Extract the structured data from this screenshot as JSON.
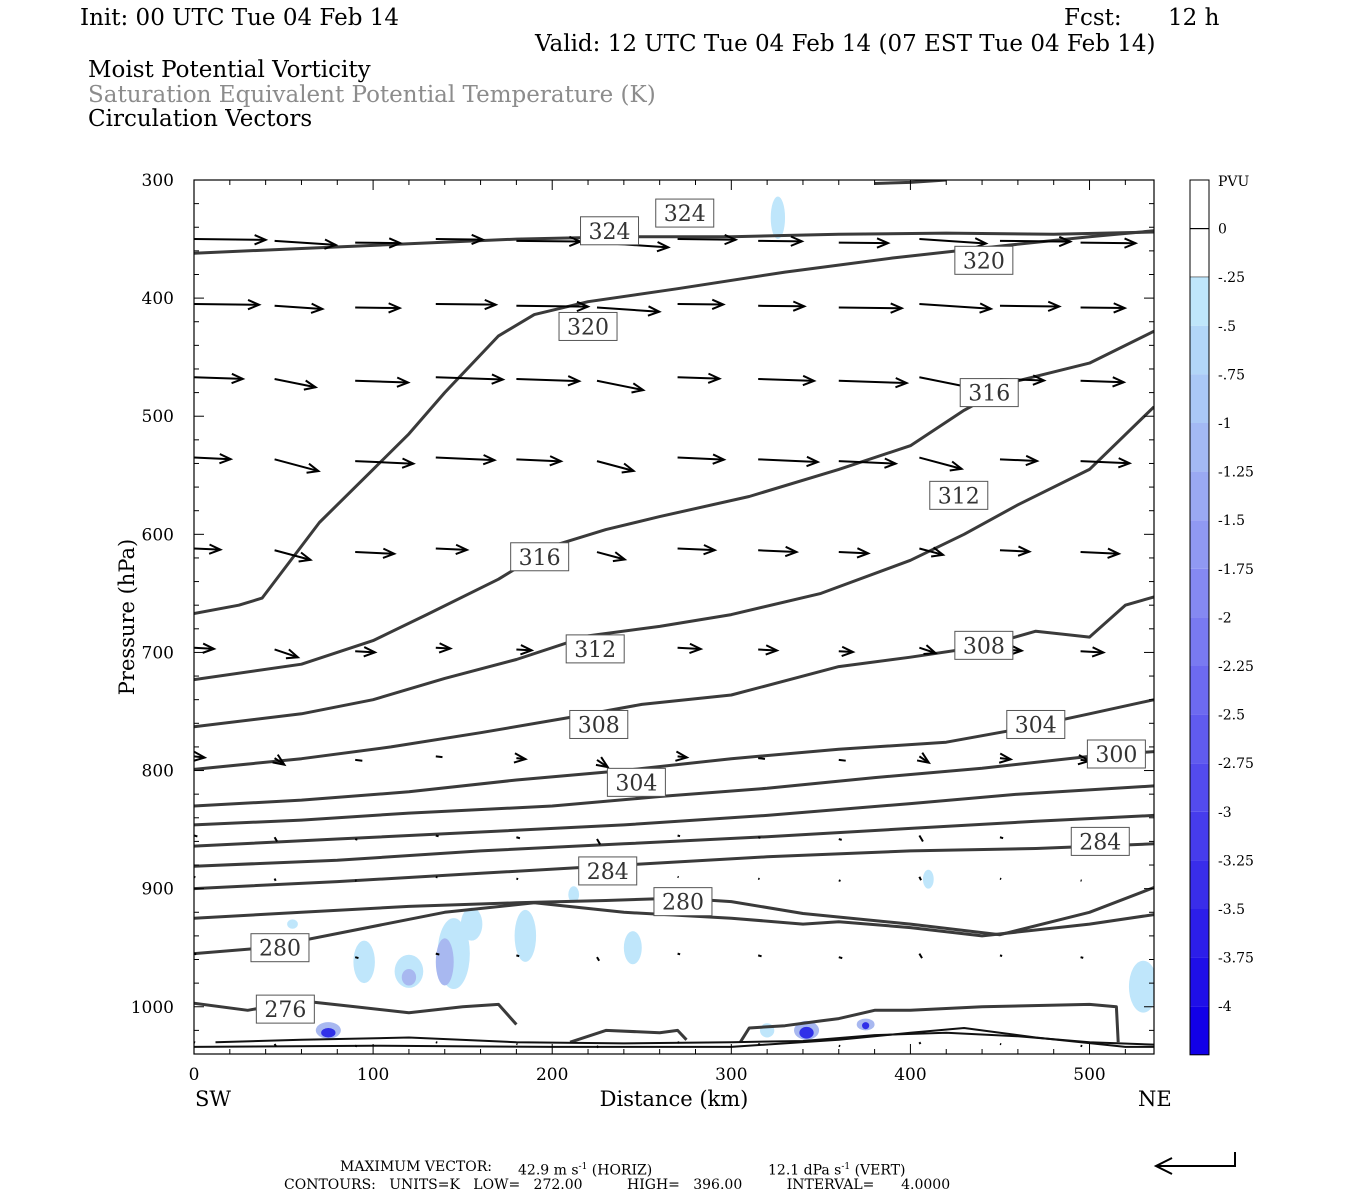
{
  "header": {
    "init": "Init: 00 UTC Tue 04 Feb 14",
    "fcst_label": "Fcst:",
    "fcst_value": "12 h",
    "valid": "Valid: 12 UTC Tue 04 Feb 14 (07 EST Tue 04 Feb 14)"
  },
  "titles": {
    "line1": "Moist Potential Vorticity",
    "line2": "Saturation Equivalent Potential Temperature (K)",
    "line3": "Circulation Vectors"
  },
  "footer": {
    "max_vector_label": "MAXIMUM VECTOR:",
    "horiz": "42.9 m s",
    "horiz_unit": "(HORIZ)",
    "vert": "12.1 dPa s",
    "vert_unit": "(VERT)",
    "contours": "CONTOURS:   UNITS=K   LOW=   272.00          HIGH=   396.00          INTERVAL=      4.0000"
  },
  "colors": {
    "contour": "#3a3a3a",
    "vector": "#000000",
    "mpv_light": "#bfe6fb",
    "mpv_mid": "#a8b8f0",
    "mpv_dark": "#3030e8"
  },
  "chart_data": {
    "type": "contour-cross-section",
    "xlabel": "Distance (km)",
    "ylabel": "Pressure (hPa)",
    "x_ticks": [
      0,
      100,
      200,
      300,
      400,
      500
    ],
    "y_ticks": [
      300,
      400,
      500,
      600,
      700,
      800,
      900,
      1000
    ],
    "xlim": [
      0,
      536
    ],
    "ylim": [
      300,
      1040
    ],
    "y_scale": "linear-inverted",
    "left_end_label": "SW",
    "right_end_label": "NE",
    "contour_labels": [
      {
        "value": "324",
        "x": 232,
        "p": 343
      },
      {
        "value": "324",
        "x": 274,
        "p": 328
      },
      {
        "value": "320",
        "x": 441,
        "p": 368
      },
      {
        "value": "320",
        "x": 220,
        "p": 424
      },
      {
        "value": "316",
        "x": 444,
        "p": 480
      },
      {
        "value": "316",
        "x": 193,
        "p": 619
      },
      {
        "value": "312",
        "x": 427,
        "p": 567
      },
      {
        "value": "312",
        "x": 224,
        "p": 697
      },
      {
        "value": "308",
        "x": 441,
        "p": 694
      },
      {
        "value": "308",
        "x": 226,
        "p": 761
      },
      {
        "value": "304",
        "x": 470,
        "p": 761
      },
      {
        "value": "304",
        "x": 247,
        "p": 810
      },
      {
        "value": "300",
        "x": 515,
        "p": 786
      },
      {
        "value": "284",
        "x": 506,
        "p": 860
      },
      {
        "value": "284",
        "x": 231,
        "p": 885
      },
      {
        "value": "280",
        "x": 273,
        "p": 911
      },
      {
        "value": "280",
        "x": 48,
        "p": 950
      },
      {
        "value": "276",
        "x": 51,
        "p": 1002
      }
    ],
    "colorbar": {
      "units": "PVU",
      "levels": [
        "0",
        "-.25",
        "-.5",
        "-.75",
        "-1",
        "-1.25",
        "-1.5",
        "-1.75",
        "-2",
        "-2.25",
        "-2.5",
        "-2.75",
        "-3",
        "-3.25",
        "-3.5",
        "-3.75",
        "-4"
      ]
    }
  }
}
